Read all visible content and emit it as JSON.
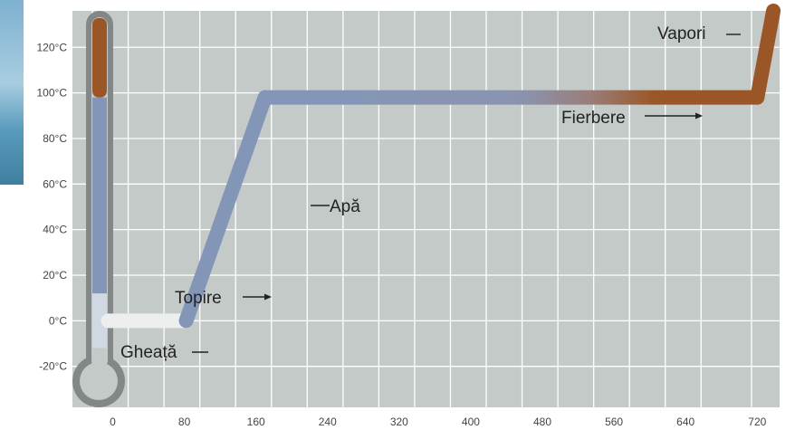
{
  "chart_data": {
    "type": "line",
    "title": "",
    "xlabel": "",
    "ylabel": "",
    "x_ticks": [
      0,
      80,
      160,
      240,
      320,
      400,
      480,
      560,
      640,
      720
    ],
    "y_ticks": [
      "120°C",
      "100°C",
      "80°C",
      "60°C",
      "40°C",
      "20°C",
      "0°C",
      "-20°C"
    ],
    "y_tick_values": [
      120,
      100,
      80,
      60,
      40,
      20,
      0,
      -20
    ],
    "xlim": [
      -45,
      745
    ],
    "ylim": [
      -38,
      136
    ],
    "grid": true,
    "series": [
      {
        "values": [
          {
            "x": 0,
            "y": 0
          },
          {
            "x": 82,
            "y": 0
          },
          {
            "x": 170,
            "y": 98
          },
          {
            "x": 720,
            "y": 98
          },
          {
            "x": 738,
            "y": 136
          }
        ]
      }
    ],
    "annotations": [
      {
        "text": "Gheață",
        "x": -30,
        "y": -16
      },
      {
        "text": "Topire",
        "x": 32,
        "y": 9
      },
      {
        "text": "Apă",
        "x": 130,
        "y": 50
      },
      {
        "text": "Fierbere",
        "x": 530,
        "y": 86
      },
      {
        "text": "Vapori",
        "x": 680,
        "y": 125
      }
    ],
    "colors": {
      "background": "#c4cac8",
      "grid": "#ffffff",
      "water": "#8496b7",
      "steam": "#9a5626",
      "ice": "#ecefee",
      "thermometer_frame": "#838788"
    }
  }
}
